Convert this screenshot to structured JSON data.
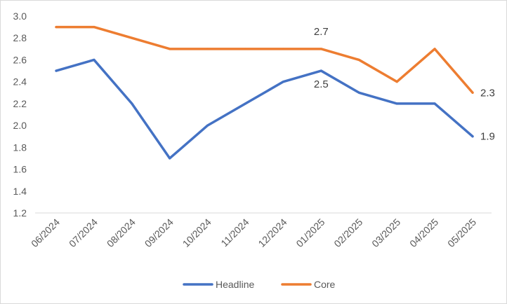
{
  "chart_data": {
    "type": "line",
    "title": "",
    "xlabel": "",
    "ylabel": "",
    "categories": [
      "06/2024",
      "07/2024",
      "08/2024",
      "09/2024",
      "10/2024",
      "11/2024",
      "12/2024",
      "01/2025",
      "02/2025",
      "03/2025",
      "04/2025",
      "05/2025"
    ],
    "ylim": [
      1.2,
      3.0
    ],
    "yticks": [
      "1.2",
      "1.4",
      "1.6",
      "1.8",
      "2.0",
      "2.2",
      "2.4",
      "2.6",
      "2.8",
      "3.0"
    ],
    "grid": false,
    "legend_position": "bottom",
    "series": [
      {
        "name": "Headline",
        "color": "#4472c4",
        "values": [
          2.5,
          2.6,
          2.2,
          1.7,
          2.0,
          2.2,
          2.4,
          2.5,
          2.3,
          2.2,
          2.2,
          1.9
        ]
      },
      {
        "name": "Core",
        "color": "#ed7d31",
        "values": [
          2.9,
          2.9,
          2.8,
          2.7,
          2.7,
          2.7,
          2.7,
          2.7,
          2.6,
          2.4,
          2.7,
          2.3
        ]
      }
    ],
    "annotations": [
      {
        "series": 1,
        "index": 7,
        "text": "2.7",
        "pos": "above"
      },
      {
        "series": 0,
        "index": 7,
        "text": "2.5",
        "pos": "below"
      },
      {
        "series": 1,
        "index": 11,
        "text": "2.3",
        "pos": "right"
      },
      {
        "series": 0,
        "index": 11,
        "text": "1.9",
        "pos": "right"
      }
    ]
  }
}
